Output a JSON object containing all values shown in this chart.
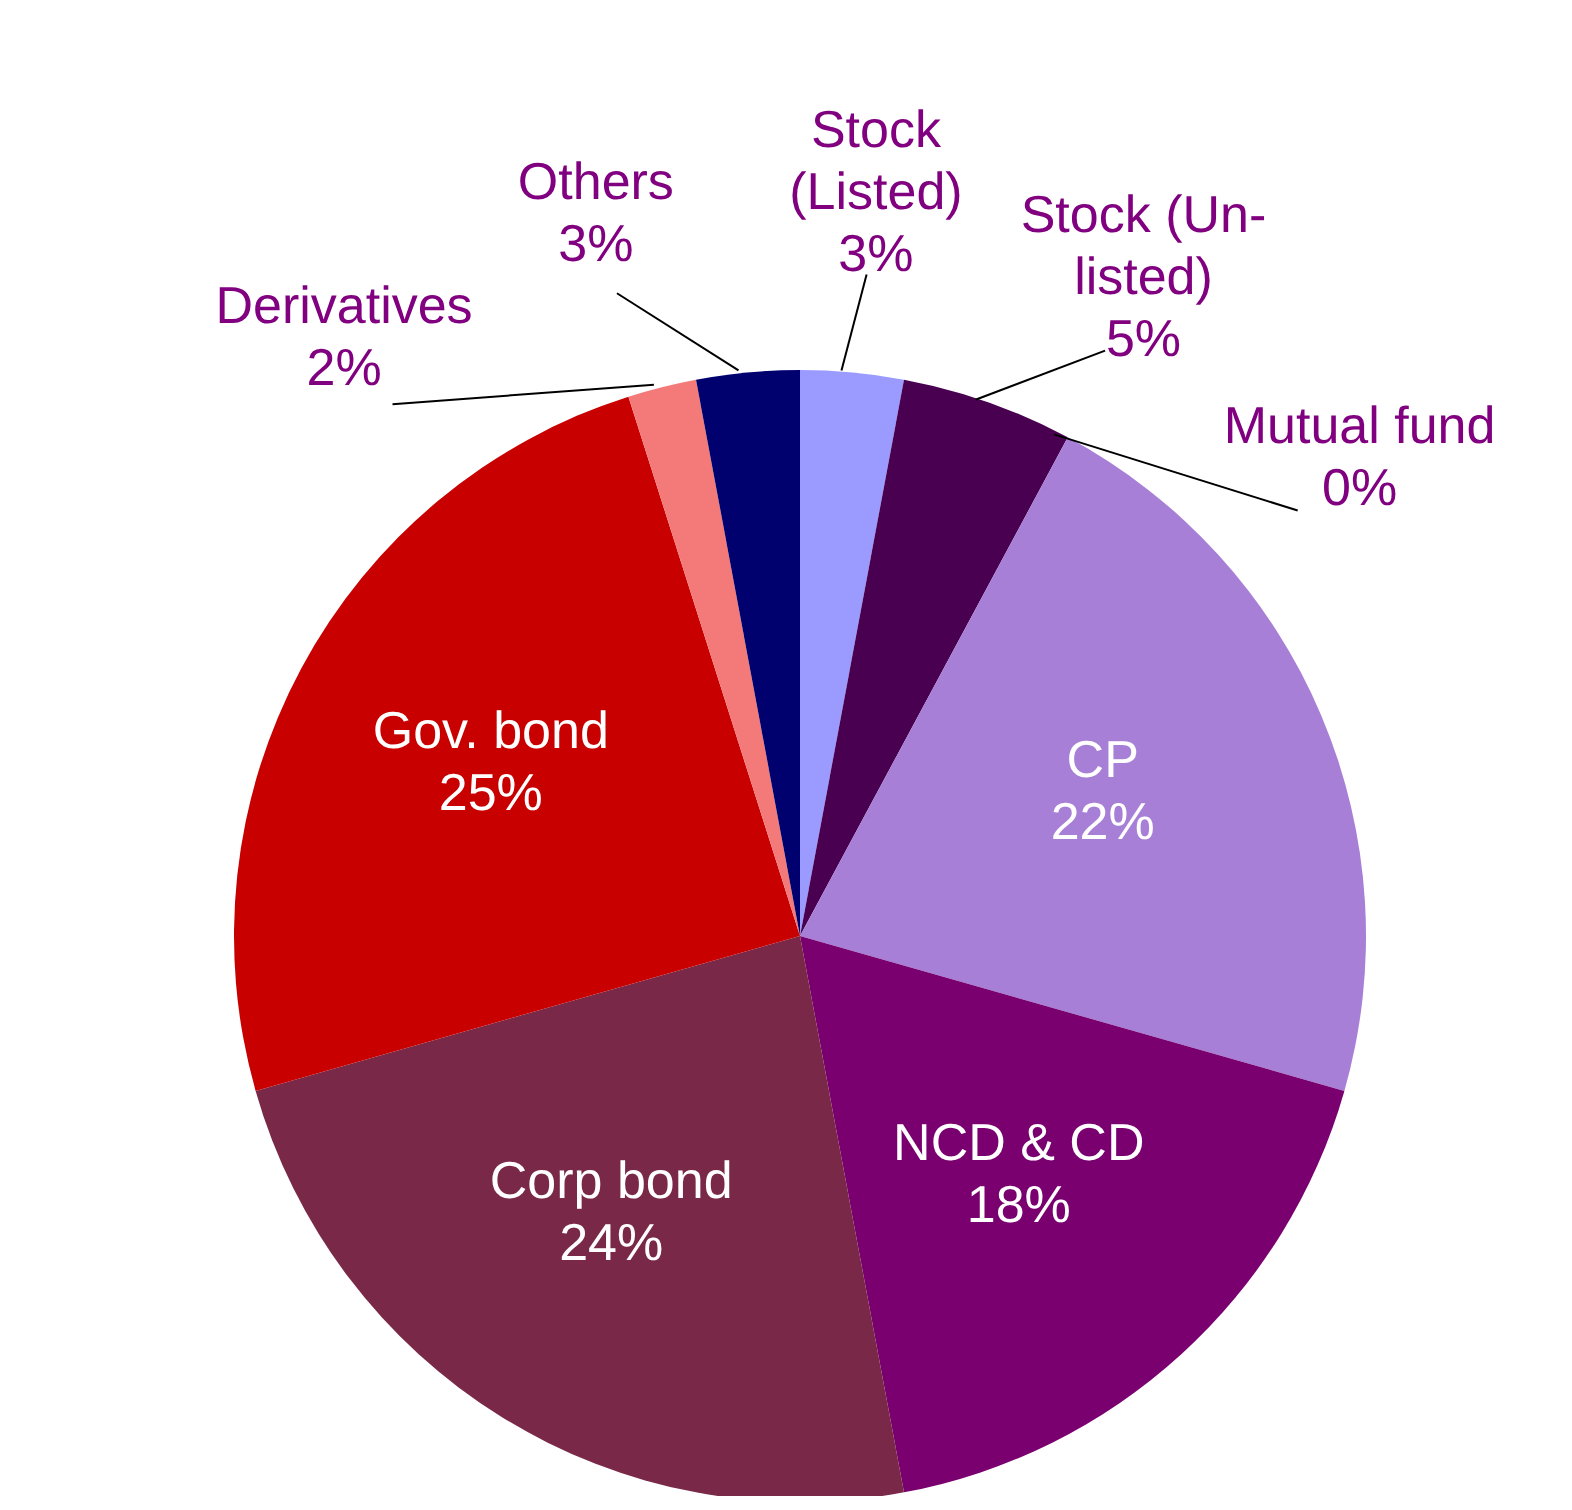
{
  "chart_data": {
    "type": "pie",
    "categories": [
      "Stock (Listed)",
      "Stock (Un-listed)",
      "Mutual fund",
      "CP",
      "NCD & CD",
      "Corp bond",
      "Gov. bond",
      "Derivatives",
      "Others"
    ],
    "values": [
      3,
      5,
      0,
      22,
      18,
      24,
      25,
      2,
      3
    ],
    "value_labels": [
      "3%",
      "5%",
      "0%",
      "22%",
      "18%",
      "24%",
      "25%",
      "2%",
      "3%"
    ],
    "colors": [
      "#9a9aff",
      "#4a0050",
      "#7a2a8a",
      "#a77fd6",
      "#7a0070",
      "#7a2848",
      "#c80000",
      "#f47a7a",
      "#00006e"
    ]
  }
}
